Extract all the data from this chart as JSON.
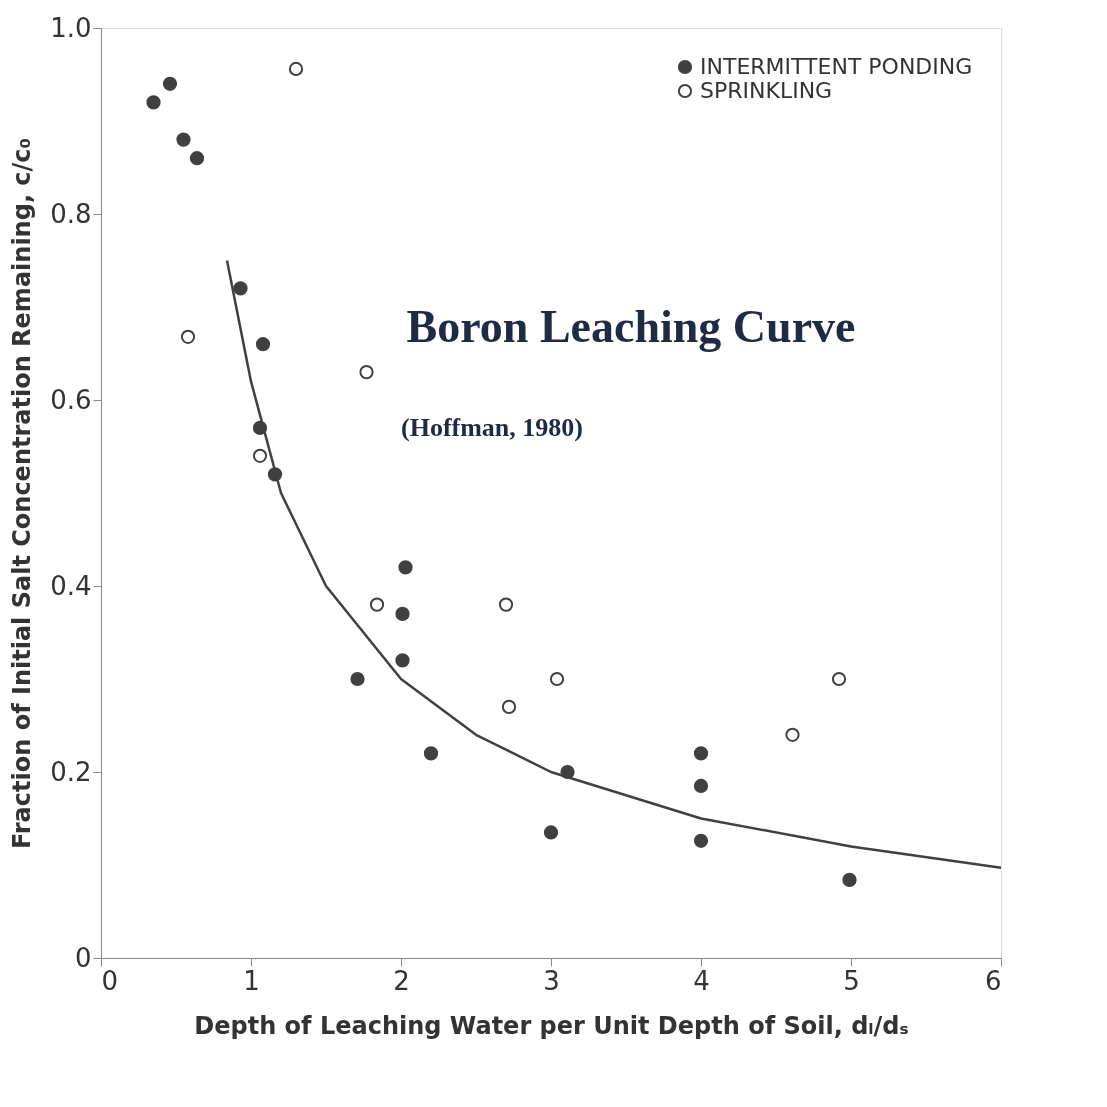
{
  "chart_data": {
    "type": "scatter",
    "xlabel": "Depth of Leaching Water per Unit Depth of Soil, dₗ/dₛ",
    "ylabel": "Fraction of Initial Salt Concentration Remaining, c/c₀",
    "annotations": [
      "Boron Leaching Curve",
      "(Hoffman, 1980)"
    ],
    "xlim": [
      0,
      6
    ],
    "xticks": [
      0,
      1,
      2,
      3,
      4,
      5,
      6
    ],
    "ylim": [
      0,
      1
    ],
    "yticks": [
      {
        "value": 0,
        "label": "0"
      },
      0.2,
      0.4,
      0.6,
      0.8,
      {
        "value": 1,
        "label": "1.0"
      }
    ],
    "grid": false,
    "legend": "top right",
    "series": [
      {
        "name": "INTERMITTENT PONDING",
        "color": "#404040",
        "marker": "circle",
        "x": [
          0.35,
          0.46,
          0.55,
          0.64,
          0.93,
          1.08,
          1.06,
          1.16,
          2.03,
          2.01,
          2.01,
          1.71,
          2.2,
          3.0,
          3.11,
          4.0,
          4.0,
          4.0,
          4.99
        ],
        "values": [
          0.92,
          0.94,
          0.88,
          0.86,
          0.72,
          0.66,
          0.57,
          0.52,
          0.42,
          0.37,
          0.32,
          0.3,
          0.22,
          0.135,
          0.2,
          0.22,
          0.185,
          0.126,
          0.084
        ]
      },
      {
        "name": "SPRINKLING",
        "color": "#404040",
        "marker": "circle-open",
        "x": [
          1.3,
          0.58,
          1.77,
          1.06,
          1.84,
          2.7,
          2.72,
          3.04,
          4.61,
          4.92
        ],
        "values": [
          0.956,
          0.668,
          0.63,
          0.54,
          0.38,
          0.38,
          0.27,
          0.3,
          0.24,
          0.3
        ]
      },
      {
        "type": "line",
        "color": "#404040",
        "line_style": "solid",
        "x": [
          0.84,
          1.0,
          1.2,
          1.5,
          2.0,
          2.5,
          3.0,
          4.0,
          5.0,
          6.0
        ],
        "values": [
          0.75,
          0.62,
          0.5,
          0.4,
          0.3,
          0.24,
          0.2,
          0.15,
          0.12,
          0.097
        ]
      }
    ]
  }
}
